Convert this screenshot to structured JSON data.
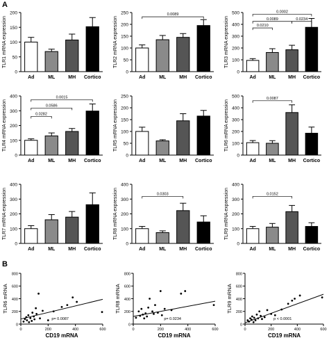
{
  "panels": {
    "a": "A",
    "b": "B"
  },
  "colors": {
    "Ad": "#ffffff",
    "ML": "#8a8a8a",
    "MH": "#555555",
    "Cortico": "#000000"
  },
  "chart_data": [
    {
      "type": "bar",
      "panel": "A",
      "ylabel": "TLR1 mRNA expression",
      "categories": [
        "Ad",
        "ML",
        "MH",
        "Cortico"
      ],
      "values": [
        100,
        68,
        107,
        152
      ],
      "errors": [
        16,
        8,
        20,
        31
      ],
      "ylim": [
        0,
        200
      ],
      "yticks": [
        0,
        50,
        100,
        150,
        200
      ],
      "annotations": []
    },
    {
      "type": "bar",
      "panel": "A",
      "ylabel": "TLR2 mRNA expression",
      "categories": [
        "Ad",
        "ML",
        "MH",
        "Cortico"
      ],
      "values": [
        100,
        135,
        145,
        195
      ],
      "errors": [
        13,
        18,
        16,
        25
      ],
      "ylim": [
        0,
        250
      ],
      "yticks": [
        0,
        50,
        100,
        150,
        200,
        250
      ],
      "annotations": [
        {
          "from": 0,
          "to": 3,
          "level": 232,
          "text": "0.0089"
        }
      ]
    },
    {
      "type": "bar",
      "panel": "A",
      "ylabel": "TLR3 mRNA expression",
      "categories": [
        "Ad",
        "ML",
        "MH",
        "Cortico"
      ],
      "values": [
        95,
        162,
        185,
        375
      ],
      "errors": [
        15,
        32,
        38,
        75
      ],
      "ylim": [
        0,
        500
      ],
      "yticks": [
        0,
        100,
        200,
        300,
        400,
        500
      ],
      "annotations": [
        {
          "from": 0,
          "to": 3,
          "level": 485,
          "text": "0.0002"
        },
        {
          "from": 0,
          "to": 2,
          "level": 425,
          "text": "0.0089"
        },
        {
          "from": 2,
          "to": 3,
          "level": 425,
          "text": "0.0234"
        },
        {
          "from": 0,
          "to": 1,
          "level": 370,
          "text": "0.0210"
        }
      ]
    },
    {
      "type": "bar",
      "panel": "A",
      "ylabel": "TLR4 mRNA expression",
      "categories": [
        "Ad",
        "ML",
        "MH",
        "Cortico"
      ],
      "values": [
        100,
        130,
        160,
        298
      ],
      "errors": [
        10,
        20,
        20,
        48
      ],
      "ylim": [
        0,
        400
      ],
      "yticks": [
        0,
        100,
        200,
        300,
        400
      ],
      "annotations": [
        {
          "from": 0,
          "to": 3,
          "level": 375,
          "text": "0.0015"
        },
        {
          "from": 0,
          "to": 2,
          "level": 318,
          "text": "0.0586"
        },
        {
          "from": 0,
          "to": 1,
          "level": 262,
          "text": "0.0282"
        }
      ]
    },
    {
      "type": "bar",
      "panel": "A",
      "ylabel": "TLR5 mRNA expression",
      "categories": [
        "Ad",
        "ML",
        "MH",
        "Cortico"
      ],
      "values": [
        100,
        60,
        145,
        165
      ],
      "errors": [
        18,
        5,
        30,
        24
      ],
      "ylim": [
        0,
        250
      ],
      "yticks": [
        0,
        50,
        100,
        150,
        200,
        250
      ],
      "annotations": []
    },
    {
      "type": "bar",
      "panel": "A",
      "ylabel": "TLR6 mRNA expression",
      "categories": [
        "Ad",
        "ML",
        "MH",
        "Cortico"
      ],
      "values": [
        105,
        100,
        360,
        185
      ],
      "errors": [
        18,
        22,
        65,
        52
      ],
      "ylim": [
        0,
        500
      ],
      "yticks": [
        0,
        100,
        200,
        300,
        400,
        500
      ],
      "annotations": [
        {
          "from": 0,
          "to": 2,
          "level": 460,
          "text": "0.0087"
        }
      ]
    },
    {
      "type": "bar",
      "panel": "A",
      "ylabel": "TLR7 mRNA expression",
      "categories": [
        "Ad",
        "ML",
        "MH",
        "Cortico"
      ],
      "values": [
        100,
        160,
        178,
        262
      ],
      "errors": [
        20,
        35,
        38,
        80
      ],
      "ylim": [
        0,
        400
      ],
      "yticks": [
        0,
        100,
        200,
        300,
        400
      ],
      "annotations": []
    },
    {
      "type": "bar",
      "panel": "A",
      "ylabel": "TLR8 mRNA expression",
      "categories": [
        "Ad",
        "ML",
        "MH",
        "Cortico"
      ],
      "values": [
        100,
        73,
        222,
        145
      ],
      "errors": [
        15,
        12,
        50,
        42
      ],
      "ylim": [
        0,
        400
      ],
      "yticks": [
        0,
        100,
        200,
        300,
        400
      ],
      "annotations": [
        {
          "from": 0,
          "to": 2,
          "level": 318,
          "text": "0.0303"
        }
      ]
    },
    {
      "type": "bar",
      "panel": "A",
      "ylabel": "TLR9 mRNA expression",
      "categories": [
        "Ad",
        "ML",
        "MH",
        "Cortico"
      ],
      "values": [
        100,
        110,
        215,
        115
      ],
      "errors": [
        15,
        25,
        42,
        25
      ],
      "ylim": [
        0,
        400
      ],
      "yticks": [
        0,
        100,
        200,
        300,
        400
      ],
      "annotations": [
        {
          "from": 0,
          "to": 2,
          "level": 318,
          "text": "0.0152"
        }
      ]
    },
    {
      "type": "scatter",
      "panel": "B",
      "ylabel": "TLR6 mRNA",
      "xlabel": "CD19 mRNA",
      "xlim": [
        0,
        600
      ],
      "xticks": [
        0,
        200,
        400,
        600
      ],
      "ylim": [
        0,
        800
      ],
      "yticks": [
        0,
        200,
        400,
        600,
        800
      ],
      "annotation": "p= 0.0087",
      "fit": [
        [
          0,
          80
        ],
        [
          600,
          390
        ]
      ],
      "points": [
        [
          20,
          40
        ],
        [
          30,
          80
        ],
        [
          40,
          110
        ],
        [
          45,
          60
        ],
        [
          55,
          140
        ],
        [
          60,
          30
        ],
        [
          70,
          95
        ],
        [
          80,
          50
        ],
        [
          85,
          180
        ],
        [
          95,
          120
        ],
        [
          100,
          75
        ],
        [
          110,
          250
        ],
        [
          115,
          160
        ],
        [
          130,
          480
        ],
        [
          140,
          90
        ],
        [
          160,
          210
        ],
        [
          200,
          60
        ],
        [
          240,
          200
        ],
        [
          300,
          270
        ],
        [
          340,
          300
        ],
        [
          380,
          420
        ],
        [
          410,
          350
        ],
        [
          595,
          190
        ]
      ]
    },
    {
      "type": "scatter",
      "panel": "B",
      "ylabel": "TLR8 mRNA",
      "xlabel": "CD19 mRNA",
      "xlim": [
        0,
        600
      ],
      "xticks": [
        0,
        200,
        400,
        600
      ],
      "ylim": [
        0,
        800
      ],
      "yticks": [
        0,
        200,
        400,
        600,
        800
      ],
      "annotation": "p= 0.0234",
      "fit": [
        [
          0,
          120
        ],
        [
          600,
          360
        ]
      ],
      "points": [
        [
          20,
          100
        ],
        [
          40,
          200
        ],
        [
          50,
          130
        ],
        [
          60,
          240
        ],
        [
          70,
          150
        ],
        [
          80,
          90
        ],
        [
          90,
          170
        ],
        [
          100,
          120
        ],
        [
          110,
          260
        ],
        [
          120,
          400
        ],
        [
          140,
          200
        ],
        [
          150,
          160
        ],
        [
          160,
          300
        ],
        [
          180,
          180
        ],
        [
          200,
          520
        ],
        [
          210,
          140
        ],
        [
          230,
          240
        ],
        [
          280,
          220
        ],
        [
          350,
          480
        ],
        [
          380,
          520
        ],
        [
          590,
          300
        ]
      ]
    },
    {
      "type": "scatter",
      "panel": "B",
      "ylabel": "TLR9 mRNA",
      "xlabel": "CD19 mRNA",
      "xlim": [
        0,
        600
      ],
      "xticks": [
        0,
        200,
        400,
        600
      ],
      "ylim": [
        0,
        800
      ],
      "yticks": [
        0,
        200,
        400,
        600,
        800
      ],
      "annotation": "p < 0.0001",
      "fit": [
        [
          0,
          20
        ],
        [
          600,
          470
        ]
      ],
      "points": [
        [
          20,
          60
        ],
        [
          30,
          40
        ],
        [
          40,
          90
        ],
        [
          50,
          70
        ],
        [
          55,
          120
        ],
        [
          65,
          30
        ],
        [
          70,
          100
        ],
        [
          80,
          60
        ],
        [
          90,
          150
        ],
        [
          100,
          90
        ],
        [
          110,
          200
        ],
        [
          120,
          130
        ],
        [
          130,
          80
        ],
        [
          150,
          110
        ],
        [
          170,
          220
        ],
        [
          200,
          160
        ],
        [
          230,
          140
        ],
        [
          280,
          230
        ],
        [
          330,
          320
        ],
        [
          360,
          370
        ],
        [
          380,
          400
        ],
        [
          420,
          450
        ],
        [
          590,
          420
        ]
      ]
    }
  ]
}
